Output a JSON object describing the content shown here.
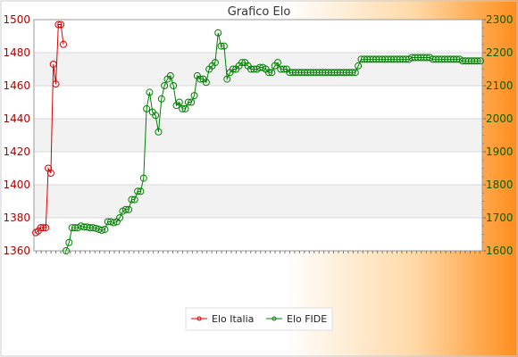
{
  "chart_data": {
    "type": "line",
    "title": "Grafico Elo",
    "legend": {
      "placement": "bottom",
      "entries": [
        "Elo Italia",
        "Elo FIDE"
      ]
    },
    "grid": true,
    "y_left": {
      "ylim": [
        1360,
        1500
      ],
      "ticks": [
        1360,
        1380,
        1400,
        1420,
        1440,
        1460,
        1480,
        1500
      ]
    },
    "y_right": {
      "ylim": [
        1600,
        2300
      ],
      "ticks": [
        1600,
        1700,
        1800,
        1900,
        2000,
        2100,
        2200,
        2300
      ]
    },
    "x_tick_count": 92,
    "colors": {
      "italia": "#dd0000",
      "fide": "#008000",
      "background_left": "#ffffff",
      "background_right": "#ff8c1a"
    },
    "series": [
      {
        "name": "Elo Italia",
        "axis": "left",
        "values": [
          1371,
          1372,
          1374,
          1374,
          1374,
          1410,
          1407,
          1473,
          1461,
          1497,
          1497,
          1485
        ]
      },
      {
        "name": "Elo FIDE",
        "axis": "right",
        "values": [
          1600,
          1625,
          1670,
          1670,
          1670,
          1675,
          1672,
          1672,
          1670,
          1670,
          1668,
          1665,
          1662,
          1665,
          1688,
          1688,
          1685,
          1688,
          1700,
          1720,
          1725,
          1725,
          1755,
          1755,
          1780,
          1780,
          1820,
          2030,
          2080,
          2020,
          2010,
          1960,
          2060,
          2100,
          2120,
          2130,
          2100,
          2040,
          2050,
          2030,
          2030,
          2050,
          2050,
          2070,
          2130,
          2120,
          2120,
          2110,
          2150,
          2160,
          2170,
          2260,
          2220,
          2220,
          2120,
          2140,
          2150,
          2150,
          2160,
          2170,
          2170,
          2160,
          2150,
          2150,
          2150,
          2155,
          2155,
          2150,
          2140,
          2140,
          2160,
          2170,
          2150,
          2150,
          2150,
          2140,
          2140,
          2140,
          2140,
          2140,
          2140,
          2140,
          2140,
          2140,
          2140,
          2140,
          2140,
          2140,
          2140,
          2140,
          2140,
          2140,
          2140,
          2140,
          2140,
          2140,
          2140,
          2140,
          2160,
          2180,
          2180,
          2180,
          2180,
          2180,
          2180,
          2180,
          2180,
          2180,
          2180,
          2180,
          2180,
          2180,
          2180,
          2180,
          2180,
          2180,
          2185,
          2185,
          2185,
          2185,
          2185,
          2185,
          2185,
          2180,
          2180,
          2180,
          2180,
          2180,
          2180,
          2180,
          2180,
          2180,
          2180,
          2175,
          2175,
          2175,
          2175,
          2175,
          2175,
          2175
        ]
      }
    ]
  }
}
